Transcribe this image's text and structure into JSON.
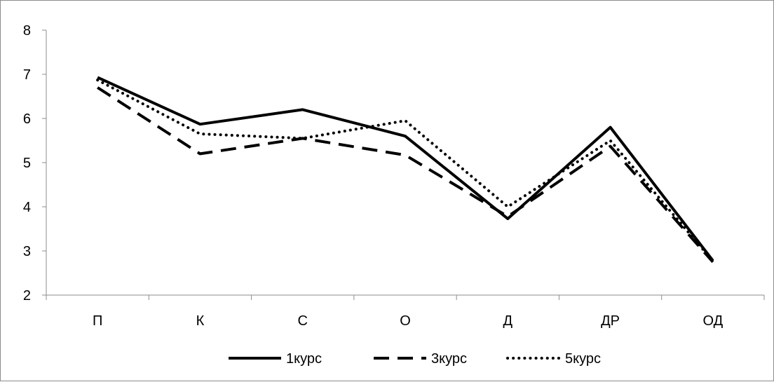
{
  "chart_data": {
    "type": "line",
    "categories": [
      "П",
      "К",
      "С",
      "О",
      "Д",
      "ДР",
      "ОД"
    ],
    "ylim": [
      2,
      8
    ],
    "yticks": [
      2,
      3,
      4,
      5,
      6,
      7,
      8
    ],
    "grid": false,
    "legend_position": "bottom",
    "series": [
      {
        "name": "1курс",
        "values": [
          6.93,
          5.87,
          6.2,
          5.6,
          3.73,
          5.8,
          2.78
        ],
        "color": "#000000",
        "style": "solid"
      },
      {
        "name": "3курс",
        "values": [
          6.7,
          5.2,
          5.55,
          5.17,
          3.78,
          5.37,
          2.75
        ],
        "color": "#000000",
        "style": "dashed"
      },
      {
        "name": "5курс",
        "values": [
          6.87,
          5.65,
          5.55,
          5.95,
          4.0,
          5.5,
          2.77
        ],
        "color": "#000000",
        "style": "dotted"
      }
    ]
  }
}
